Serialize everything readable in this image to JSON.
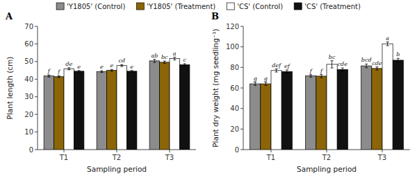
{
  "chart_data": [
    {
      "type": "bar",
      "title": "A",
      "xlabel": "Sampling period",
      "ylabel": "Plant length (cm)",
      "categories": [
        "T1",
        "T2",
        "T3"
      ],
      "ylim": [
        0,
        70
      ],
      "yticks": [
        0,
        10,
        20,
        30,
        40,
        50,
        60,
        70
      ],
      "series": [
        {
          "color": "#8c8c8c",
          "values": [
            41.8,
            44.3,
            50.4
          ],
          "errors": [
            0.6,
            0.5,
            0.9
          ],
          "annotations": [
            "f",
            "e",
            "ab"
          ]
        },
        {
          "color": "#8B6508",
          "values": [
            41.4,
            45.0,
            49.6
          ],
          "errors": [
            0.5,
            0.5,
            0.7
          ],
          "annotations": [
            "f",
            "e",
            "bc"
          ]
        },
        {
          "color": "#ffffff",
          "values": [
            45.9,
            47.7,
            51.7
          ],
          "errors": [
            0.6,
            0.5,
            0.8
          ],
          "annotations": [
            "de",
            "cd",
            "a"
          ]
        },
        {
          "color": "#111111",
          "values": [
            44.5,
            44.5,
            48.2
          ],
          "errors": [
            0.4,
            0.4,
            0.6
          ],
          "annotations": [
            "e",
            "e",
            "c"
          ]
        }
      ]
    },
    {
      "type": "bar",
      "title": "B",
      "xlabel": "Sampling period",
      "ylabel": "Plant dry weight (mg seedling⁻¹)",
      "categories": [
        "T1",
        "T2",
        "T3"
      ],
      "ylim": [
        0,
        120
      ],
      "yticks": [
        0,
        20,
        40,
        60,
        80,
        100,
        120
      ],
      "legend": "top",
      "series": [
        {
          "name": "'Y1805' (Control)",
          "color": "#8c8c8c",
          "values": [
            64.0,
            71.8,
            81.5
          ],
          "errors": [
            1.5,
            1.2,
            1.8
          ],
          "annotations": [
            "g",
            "f",
            "bcd"
          ]
        },
        {
          "name": "'Y1805' (Treatment)",
          "color": "#8B6508",
          "values": [
            64.0,
            71.5,
            79.0
          ],
          "errors": [
            1.5,
            1.5,
            1.5
          ],
          "annotations": [
            "g",
            "f",
            "cde"
          ]
        },
        {
          "name": "'CS' (Control)",
          "color": "#ffffff",
          "values": [
            77.0,
            83.0,
            103.0
          ],
          "errors": [
            1.5,
            3.5,
            1.8
          ],
          "annotations": [
            "def",
            "bc",
            "a"
          ]
        },
        {
          "name": "'CS' (Treatment)",
          "color": "#111111",
          "values": [
            76.0,
            78.0,
            87.0
          ],
          "errors": [
            1.5,
            1.5,
            1.8
          ],
          "annotations": [
            "ef",
            "cde",
            "b"
          ]
        }
      ]
    }
  ]
}
